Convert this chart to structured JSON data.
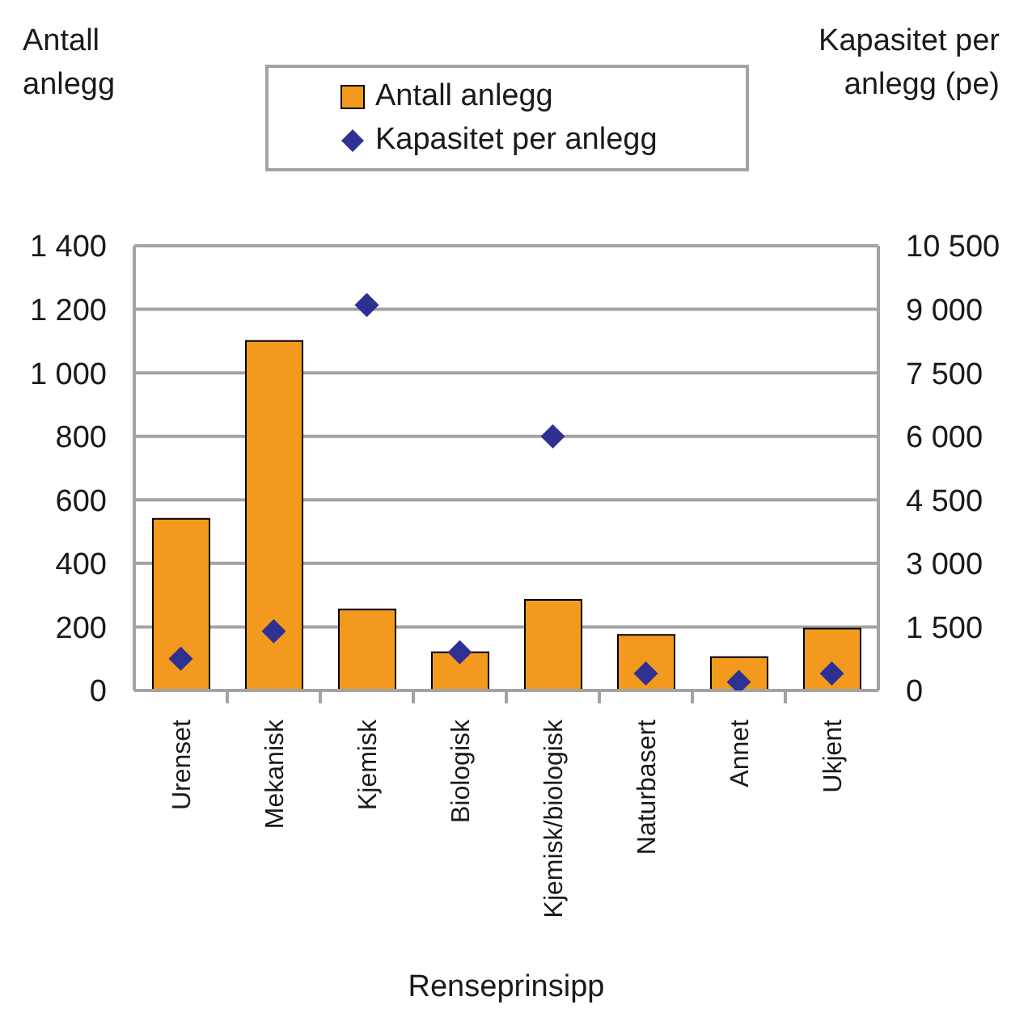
{
  "chart_data": {
    "type": "bar",
    "categories": [
      "Urenset",
      "Mekanisk",
      "Kjemisk",
      "Biologisk",
      "Kjemisk/biologisk",
      "Naturbasert",
      "Annet",
      "Ukjent"
    ],
    "series": [
      {
        "name": "Antall anlegg",
        "color": "#f39a1e",
        "values": [
          540,
          1100,
          255,
          120,
          285,
          175,
          105,
          195
        ]
      },
      {
        "name": "Kapasitet per anlegg",
        "type": "scatter",
        "axis": "y2",
        "color": "#2e3092",
        "values": [
          750,
          1400,
          9100,
          900,
          6000,
          400,
          200,
          400
        ]
      }
    ],
    "xlabel": "Renseprinsipp",
    "ylabel": "Antall anlegg",
    "y2label": "Kapasitet per anlegg (pe)",
    "ylim": [
      0,
      1400
    ],
    "yticks": [
      0,
      200,
      400,
      600,
      800,
      {
        "value": 1000,
        "label": "1 000"
      },
      {
        "value": 1200,
        "label": "1 200"
      },
      {
        "value": 1400,
        "label": "1 400"
      }
    ],
    "y2lim": [
      0,
      10500
    ],
    "y2ticks": [
      0,
      {
        "value": 1500,
        "label": "1 500"
      },
      {
        "value": 3000,
        "label": "3 000"
      },
      {
        "value": 4500,
        "label": "4 500"
      },
      {
        "value": 6000,
        "label": "6 000"
      },
      {
        "value": 7500,
        "label": "7 500"
      },
      {
        "value": 9000,
        "label": "9 000"
      },
      {
        "value": 10500,
        "label": "10 500"
      }
    ],
    "grid": "y",
    "legend": "top",
    "marker": "diamond"
  }
}
